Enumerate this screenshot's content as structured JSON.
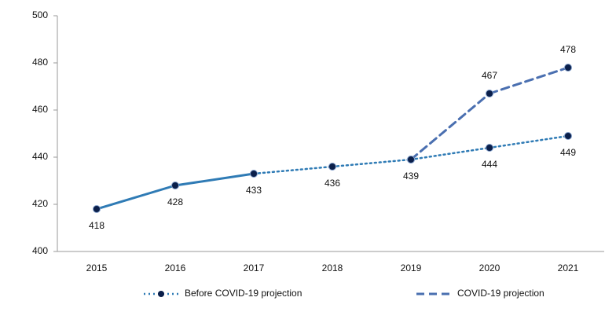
{
  "chart_data": {
    "type": "line",
    "categories": [
      "2015",
      "2016",
      "2017",
      "2018",
      "2019",
      "2020",
      "2021"
    ],
    "ylim": [
      400,
      500
    ],
    "yticks": [
      400,
      420,
      440,
      460,
      480,
      500
    ],
    "series": [
      {
        "name": "Before COVID-19 projection",
        "color": "#2f7bb5",
        "values": [
          418,
          428,
          433,
          436,
          439,
          444,
          449
        ],
        "segment_styles": [
          "solid",
          "solid",
          "dotted",
          "dotted",
          "dotted",
          "dotted"
        ],
        "label_position": "below",
        "show_labels": [
          true,
          true,
          true,
          true,
          true,
          true,
          true
        ]
      },
      {
        "name": "COVID-19 projection",
        "color": "#4a6fb0",
        "values": [
          null,
          null,
          null,
          null,
          439,
          467,
          478
        ],
        "segment_styles": [
          "dashed",
          "dashed",
          "dashed",
          "dashed",
          "dashed",
          "dashed"
        ],
        "label_position": "above",
        "show_labels": [
          false,
          false,
          false,
          false,
          false,
          true,
          true
        ]
      }
    ],
    "legend": "bottom"
  }
}
